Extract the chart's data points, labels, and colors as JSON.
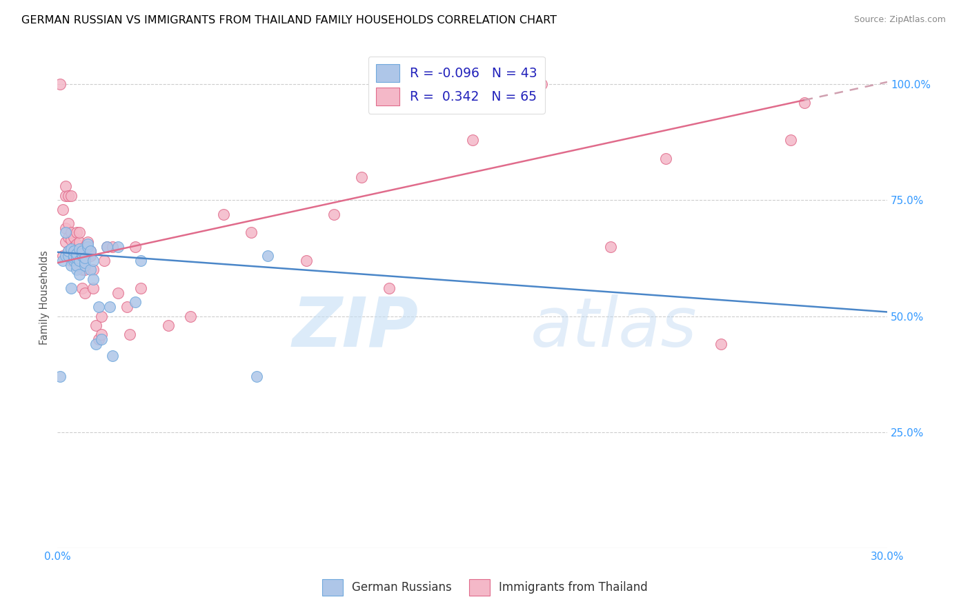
{
  "title": "GERMAN RUSSIAN VS IMMIGRANTS FROM THAILAND FAMILY HOUSEHOLDS CORRELATION CHART",
  "source": "Source: ZipAtlas.com",
  "ylabel": "Family Households",
  "y_ticks": [
    "100.0%",
    "75.0%",
    "50.0%",
    "25.0%"
  ],
  "y_tick_vals": [
    1.0,
    0.75,
    0.5,
    0.25
  ],
  "xmin": 0.0,
  "xmax": 0.3,
  "ymin": 0.0,
  "ymax": 1.08,
  "blue_r": -0.096,
  "pink_r": 0.342,
  "blue_intercept": 0.638,
  "blue_slope": -0.43,
  "pink_intercept": 0.615,
  "pink_slope": 1.3,
  "blue_scatter_x": [
    0.001,
    0.002,
    0.003,
    0.003,
    0.004,
    0.004,
    0.005,
    0.005,
    0.005,
    0.006,
    0.006,
    0.006,
    0.006,
    0.007,
    0.007,
    0.007,
    0.007,
    0.008,
    0.008,
    0.008,
    0.009,
    0.009,
    0.009,
    0.01,
    0.01,
    0.01,
    0.011,
    0.011,
    0.012,
    0.012,
    0.013,
    0.013,
    0.014,
    0.015,
    0.016,
    0.018,
    0.019,
    0.02,
    0.022,
    0.028,
    0.03,
    0.072,
    0.076
  ],
  "blue_scatter_y": [
    0.37,
    0.62,
    0.63,
    0.68,
    0.63,
    0.64,
    0.56,
    0.61,
    0.645,
    0.62,
    0.625,
    0.63,
    0.64,
    0.6,
    0.61,
    0.625,
    0.635,
    0.59,
    0.62,
    0.645,
    0.63,
    0.635,
    0.64,
    0.61,
    0.615,
    0.625,
    0.65,
    0.655,
    0.6,
    0.64,
    0.58,
    0.62,
    0.44,
    0.52,
    0.45,
    0.65,
    0.52,
    0.415,
    0.65,
    0.53,
    0.62,
    0.37,
    0.63
  ],
  "pink_scatter_x": [
    0.001,
    0.002,
    0.002,
    0.003,
    0.003,
    0.003,
    0.003,
    0.004,
    0.004,
    0.004,
    0.004,
    0.005,
    0.005,
    0.005,
    0.005,
    0.005,
    0.006,
    0.006,
    0.006,
    0.007,
    0.007,
    0.007,
    0.007,
    0.008,
    0.008,
    0.008,
    0.009,
    0.009,
    0.009,
    0.01,
    0.01,
    0.01,
    0.01,
    0.011,
    0.012,
    0.012,
    0.013,
    0.013,
    0.014,
    0.015,
    0.016,
    0.016,
    0.017,
    0.018,
    0.02,
    0.022,
    0.025,
    0.026,
    0.028,
    0.03,
    0.04,
    0.048,
    0.06,
    0.07,
    0.09,
    0.1,
    0.11,
    0.12,
    0.15,
    0.175,
    0.2,
    0.22,
    0.24,
    0.265,
    0.27
  ],
  "pink_scatter_y": [
    1.0,
    0.63,
    0.73,
    0.66,
    0.69,
    0.76,
    0.78,
    0.64,
    0.67,
    0.7,
    0.76,
    0.62,
    0.64,
    0.665,
    0.68,
    0.76,
    0.62,
    0.65,
    0.67,
    0.63,
    0.64,
    0.655,
    0.68,
    0.64,
    0.66,
    0.68,
    0.56,
    0.6,
    0.63,
    0.55,
    0.6,
    0.62,
    0.65,
    0.66,
    0.63,
    0.64,
    0.56,
    0.6,
    0.48,
    0.45,
    0.46,
    0.5,
    0.62,
    0.65,
    0.65,
    0.55,
    0.52,
    0.46,
    0.65,
    0.56,
    0.48,
    0.5,
    0.72,
    0.68,
    0.62,
    0.72,
    0.8,
    0.56,
    0.88,
    1.0,
    0.65,
    0.84,
    0.44,
    0.88,
    0.96
  ],
  "blue_color": "#aec6e8",
  "blue_edge": "#6fa8dc",
  "pink_color": "#f4b8c8",
  "pink_edge": "#e06b8b",
  "blue_line_color": "#4a86c8",
  "pink_line_color": "#e06b8b",
  "pink_dash_color": "#d0a0b0",
  "grid_color": "#cccccc",
  "watermark_zip": "ZIP",
  "watermark_atlas": "atlas"
}
